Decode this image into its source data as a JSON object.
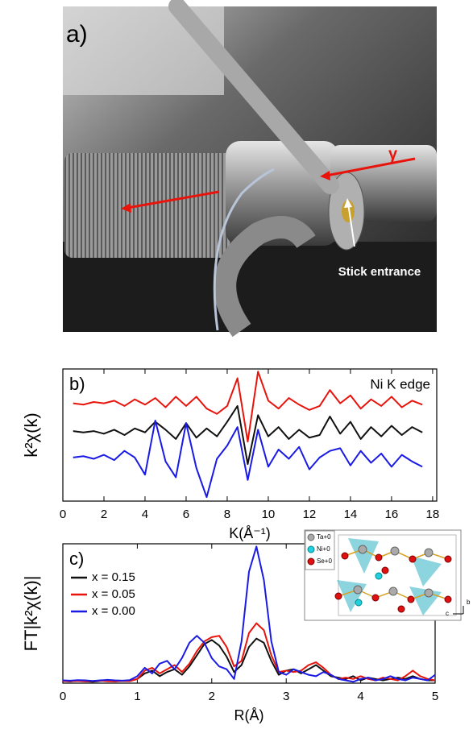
{
  "photo": {
    "panel_label": "a)",
    "beam_label": "γ",
    "annotation": "Stick entrance"
  },
  "chart_data": [
    {
      "type": "line",
      "panel_label": "b)",
      "annotation": "Ni K edge",
      "x_label": "K(Å⁻¹)",
      "y_label": "k²χ(k)",
      "xlim": [
        0,
        18.2
      ],
      "ylim": [
        0,
        10
      ],
      "xticks": [
        0,
        2,
        4,
        6,
        8,
        10,
        12,
        14,
        16,
        18
      ],
      "x": [
        0.5,
        1,
        1.5,
        2,
        2.5,
        3,
        3.5,
        4,
        4.5,
        5,
        5.5,
        6,
        6.5,
        7,
        7.5,
        8,
        8.5,
        9,
        9.5,
        10,
        10.5,
        11,
        11.5,
        12,
        12.5,
        13,
        13.5,
        14,
        14.5,
        15,
        15.5,
        16,
        16.5,
        17,
        17.5
      ],
      "series": [
        {
          "color": "#e8140c",
          "values": [
            7.4,
            7.3,
            7.5,
            7.4,
            7.6,
            7.2,
            7.7,
            7.3,
            7.8,
            7.1,
            7.9,
            7.2,
            7.9,
            7.0,
            6.6,
            7.2,
            9.3,
            4.5,
            9.8,
            7.6,
            7.0,
            7.8,
            7.3,
            6.9,
            7.2,
            8.4,
            7.4,
            8.0,
            7.0,
            7.7,
            7.2,
            7.9,
            7.1,
            7.6,
            7.3
          ]
        },
        {
          "color": "#111111",
          "values": [
            5.3,
            5.2,
            5.3,
            5.1,
            5.4,
            5.0,
            5.5,
            5.2,
            6.0,
            5.4,
            4.7,
            5.9,
            4.8,
            5.5,
            4.9,
            6.0,
            7.2,
            2.8,
            6.5,
            4.9,
            5.6,
            4.7,
            5.4,
            4.8,
            5.0,
            6.4,
            5.1,
            6.0,
            4.7,
            5.6,
            4.9,
            5.7,
            5.0,
            5.6,
            5.2
          ]
        },
        {
          "color": "#1a1ae6",
          "values": [
            3.3,
            3.4,
            3.2,
            3.5,
            3.1,
            3.8,
            3.3,
            2.0,
            6.1,
            3.0,
            1.8,
            5.9,
            2.5,
            0.3,
            3.2,
            4.2,
            5.6,
            1.6,
            5.4,
            2.6,
            3.9,
            3.2,
            4.1,
            2.4,
            3.3,
            3.8,
            4.0,
            2.7,
            3.8,
            2.9,
            3.6,
            2.6,
            3.5,
            3.0,
            2.6
          ]
        }
      ]
    },
    {
      "type": "line",
      "panel_label": "c)",
      "x_label": "R(Å)",
      "y_label": "FT|k²χ(k)|",
      "xlim": [
        0,
        5
      ],
      "ylim": [
        0,
        10
      ],
      "xticks": [
        0,
        1,
        2,
        3,
        4,
        5
      ],
      "x": [
        0,
        0.1,
        0.2,
        0.3,
        0.4,
        0.5,
        0.6,
        0.7,
        0.8,
        0.9,
        1,
        1.1,
        1.2,
        1.3,
        1.4,
        1.5,
        1.6,
        1.7,
        1.8,
        1.9,
        2,
        2.1,
        2.2,
        2.3,
        2.4,
        2.5,
        2.6,
        2.7,
        2.8,
        2.9,
        3,
        3.1,
        3.2,
        3.3,
        3.4,
        3.5,
        3.6,
        3.7,
        3.8,
        3.9,
        4,
        4.1,
        4.2,
        4.3,
        4.4,
        4.5,
        4.6,
        4.7,
        4.8,
        4.9,
        5
      ],
      "series": [
        {
          "name": "x = 0.15",
          "color": "#111111",
          "values": [
            0.15,
            0.12,
            0.18,
            0.14,
            0.1,
            0.16,
            0.2,
            0.13,
            0.17,
            0.15,
            0.3,
            0.7,
            0.9,
            0.5,
            0.8,
            1.0,
            0.6,
            1.2,
            2.0,
            2.8,
            3.1,
            2.7,
            1.9,
            0.8,
            1.3,
            2.6,
            3.2,
            2.9,
            1.6,
            0.6,
            0.9,
            1.0,
            0.7,
            1.0,
            1.3,
            0.9,
            0.5,
            0.4,
            0.3,
            0.5,
            0.2,
            0.4,
            0.3,
            0.2,
            0.3,
            0.4,
            0.3,
            0.5,
            0.3,
            0.2,
            0.2
          ]
        },
        {
          "name": "x = 0.05",
          "color": "#e8140c",
          "values": [
            0.15,
            0.14,
            0.16,
            0.12,
            0.15,
            0.18,
            0.14,
            0.12,
            0.16,
            0.15,
            0.3,
            0.9,
            1.1,
            0.7,
            1.0,
            1.3,
            0.8,
            1.4,
            2.3,
            3.0,
            3.3,
            3.4,
            2.6,
            1.2,
            1.6,
            3.6,
            4.3,
            3.8,
            2.0,
            0.8,
            0.9,
            0.8,
            0.9,
            1.3,
            1.5,
            1.1,
            0.6,
            0.3,
            0.4,
            0.3,
            0.5,
            0.3,
            0.2,
            0.4,
            0.3,
            0.2,
            0.5,
            0.9,
            0.5,
            0.3,
            0.2
          ]
        },
        {
          "name": "x = 0.00",
          "color": "#1a1ae6",
          "values": [
            0.2,
            0.18,
            0.22,
            0.2,
            0.16,
            0.2,
            0.24,
            0.2,
            0.18,
            0.22,
            0.5,
            1.1,
            0.7,
            1.4,
            1.6,
            1.0,
            1.8,
            2.9,
            3.4,
            2.9,
            1.8,
            1.2,
            1.0,
            0.3,
            3.0,
            8.0,
            9.8,
            7.4,
            3.0,
            0.8,
            0.6,
            1.0,
            0.8,
            0.6,
            0.5,
            0.8,
            0.6,
            0.3,
            0.2,
            0.1,
            0.3,
            0.4,
            0.2,
            0.3,
            0.5,
            0.3,
            0.2,
            0.4,
            0.3,
            0.2,
            0.6
          ]
        }
      ],
      "inset": {
        "legend": [
          "Ta+0",
          "Ni+0",
          "Se+0"
        ],
        "axis_labels": [
          "b",
          "c"
        ]
      }
    }
  ]
}
